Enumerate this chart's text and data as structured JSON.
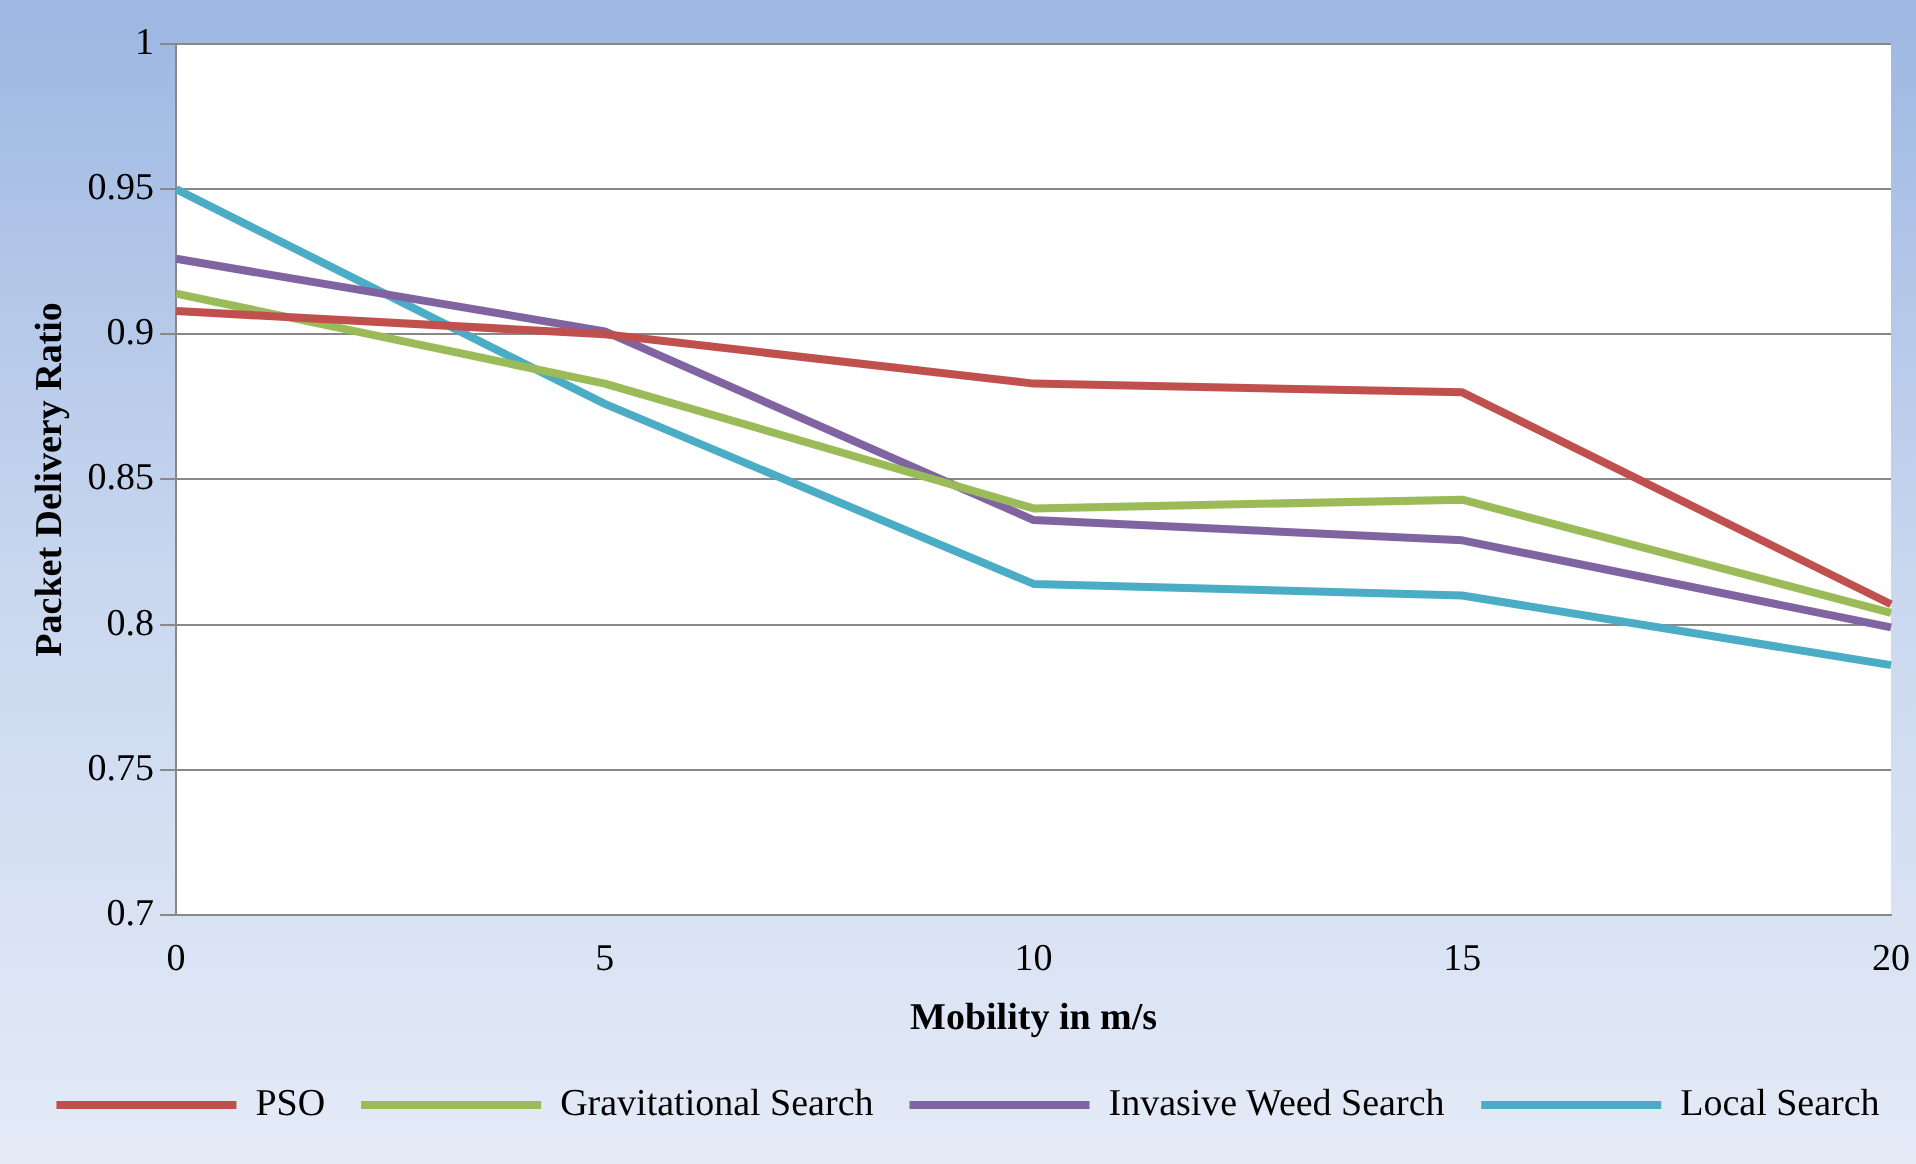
{
  "chart_data": {
    "type": "line",
    "xlabel": "Mobility in m/s",
    "ylabel": "Packet Delivery Ratio",
    "categories": [
      "0",
      "5",
      "10",
      "15",
      "20"
    ],
    "series": [
      {
        "name": "PSO",
        "color": "#c0504d",
        "values": [
          0.908,
          0.9,
          0.883,
          0.88,
          0.807
        ]
      },
      {
        "name": "Gravitational Search",
        "color": "#9bbb59",
        "values": [
          0.914,
          0.883,
          0.84,
          0.843,
          0.804
        ]
      },
      {
        "name": "Invasive Weed Search",
        "color": "#8064a2",
        "values": [
          0.926,
          0.901,
          0.836,
          0.829,
          0.799
        ]
      },
      {
        "name": "Local Search",
        "color": "#4bacc6",
        "values": [
          0.95,
          0.876,
          0.814,
          0.81,
          0.786
        ]
      }
    ],
    "ylim": [
      0.7,
      1
    ],
    "yticks": [
      0.7,
      0.75,
      0.8,
      0.85,
      0.9,
      0.95,
      1
    ],
    "grid": "y",
    "legend": "bottom",
    "marker": "none",
    "line_style": "solid"
  }
}
